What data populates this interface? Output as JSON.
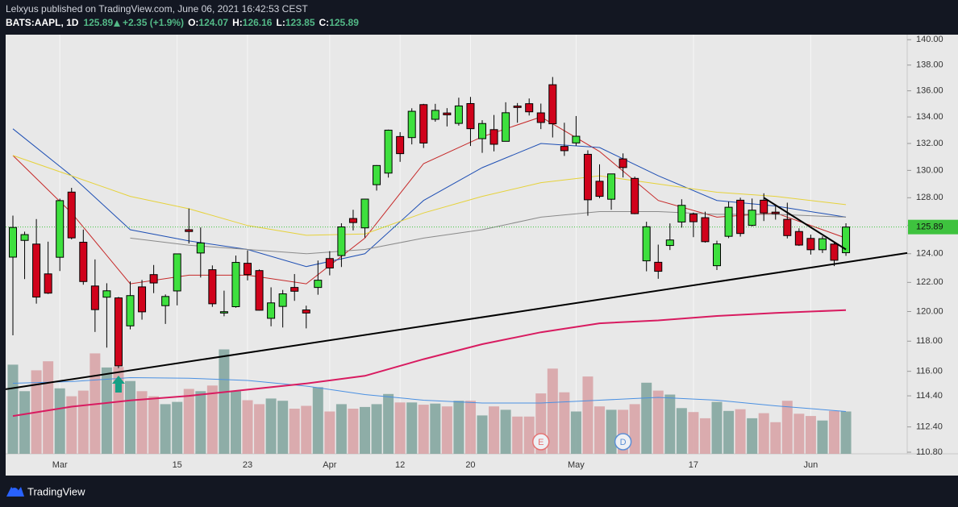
{
  "header": {
    "publisher": "Lelxyus published on TradingView.com, June 06, 2021 16:42:53 CEST",
    "symbol": "BATS:AAPL, 1D",
    "change": "+2.35 (+1.9%)",
    "labels": [
      "O:",
      "H:",
      "L:",
      "C:"
    ]
  },
  "footer": {
    "brand": "TradingView"
  },
  "chart_data": {
    "type": "candlestick",
    "log": true,
    "x": [
      "2021-02-23",
      "2021-02-24",
      "2021-02-25",
      "2021-02-26",
      "2021-03-01",
      "2021-03-02",
      "2021-03-03",
      "2021-03-04",
      "2021-03-05",
      "2021-03-08",
      "2021-03-09",
      "2021-03-10",
      "2021-03-11",
      "2021-03-12",
      "2021-03-15",
      "2021-03-16",
      "2021-03-17",
      "2021-03-18",
      "2021-03-19",
      "2021-03-22",
      "2021-03-23",
      "2021-03-24",
      "2021-03-25",
      "2021-03-26",
      "2021-03-29",
      "2021-03-30",
      "2021-03-31",
      "2021-04-01",
      "2021-04-05",
      "2021-04-06",
      "2021-04-07",
      "2021-04-08",
      "2021-04-09",
      "2021-04-12",
      "2021-04-13",
      "2021-04-14",
      "2021-04-15",
      "2021-04-16",
      "2021-04-19",
      "2021-04-20",
      "2021-04-21",
      "2021-04-22",
      "2021-04-23",
      "2021-04-26",
      "2021-04-27",
      "2021-04-28",
      "2021-04-29",
      "2021-04-30",
      "2021-05-03",
      "2021-05-04",
      "2021-05-05",
      "2021-05-06",
      "2021-05-07",
      "2021-05-10",
      "2021-05-11",
      "2021-05-12",
      "2021-05-13",
      "2021-05-14",
      "2021-05-17",
      "2021-05-18",
      "2021-05-19",
      "2021-05-20",
      "2021-05-21",
      "2021-05-24",
      "2021-05-25",
      "2021-05-26",
      "2021-05-27",
      "2021-05-28",
      "2021-06-01",
      "2021-06-02",
      "2021-06-03",
      "2021-06-04"
    ],
    "open": [
      123.76,
      124.94,
      124.68,
      122.59,
      123.75,
      128.41,
      124.81,
      121.75,
      120.98,
      120.93,
      119.03,
      121.69,
      122.54,
      120.4,
      121.41,
      125.7,
      124.05,
      122.88,
      119.9,
      120.33,
      123.33,
      122.82,
      119.54,
      120.35,
      121.65,
      120.11,
      121.65,
      123.66,
      123.87,
      126.5,
      125.83,
      128.95,
      129.8,
      132.52,
      132.44,
      134.94,
      133.82,
      134.3,
      133.51,
      135.02,
      132.36,
      133.04,
      132.16,
      134.83,
      135.01,
      134.31,
      136.47,
      131.78,
      132.04,
      131.19,
      129.2,
      127.89,
      130.85,
      129.41,
      123.5,
      123.4,
      124.58,
      126.25,
      126.82,
      126.56,
      123.16,
      125.23,
      127.82,
      126.01,
      127.82,
      126.96,
      126.44,
      125.57,
      125.08,
      124.28,
      124.68,
      124.07
    ],
    "high": [
      126.71,
      125.56,
      126.46,
      124.85,
      127.93,
      128.72,
      125.71,
      123.6,
      121.94,
      121.0,
      122.06,
      122.17,
      123.21,
      121.17,
      124.0,
      127.22,
      125.86,
      123.18,
      121.43,
      123.87,
      124.24,
      122.9,
      121.66,
      121.48,
      122.58,
      120.4,
      123.52,
      124.18,
      126.16,
      127.13,
      127.92,
      130.39,
      133.04,
      132.85,
      134.66,
      135.0,
      135.0,
      134.67,
      135.47,
      135.53,
      133.75,
      134.15,
      135.12,
      135.06,
      135.41,
      135.02,
      137.07,
      133.56,
      134.07,
      131.49,
      130.45,
      129.75,
      131.26,
      129.54,
      126.27,
      124.64,
      126.15,
      127.89,
      126.93,
      126.99,
      124.92,
      127.72,
      128.0,
      127.94,
      128.32,
      127.39,
      127.64,
      125.8,
      125.35,
      125.24,
      124.85,
      126.16
    ],
    "low": [
      118.39,
      122.23,
      120.54,
      121.2,
      122.79,
      125.01,
      121.84,
      118.62,
      117.57,
      116.21,
      118.79,
      119.45,
      121.26,
      119.16,
      120.42,
      124.72,
      122.34,
      120.32,
      119.68,
      120.26,
      122.14,
      120.07,
      119.0,
      118.92,
      120.73,
      118.86,
      121.15,
      122.49,
      123.07,
      125.65,
      125.14,
      128.52,
      129.47,
      130.63,
      131.93,
      131.66,
      133.64,
      133.28,
      133.34,
      131.81,
      131.3,
      131.41,
      132.16,
      133.56,
      134.11,
      133.08,
      132.45,
      131.07,
      131.83,
      126.7,
      127.97,
      127.13,
      129.48,
      126.81,
      122.77,
      122.25,
      124.26,
      125.85,
      125.17,
      124.78,
      122.86,
      125.1,
      125.21,
      125.94,
      126.32,
      126.42,
      125.08,
      124.55,
      123.94,
      124.05,
      123.13,
      123.85
    ],
    "close": [
      125.86,
      125.35,
      120.99,
      121.26,
      127.79,
      125.12,
      122.06,
      120.13,
      121.42,
      116.36,
      121.09,
      119.98,
      121.96,
      121.03,
      123.99,
      125.57,
      124.76,
      120.53,
      119.99,
      123.39,
      122.54,
      120.09,
      120.59,
      121.21,
      121.39,
      119.9,
      122.15,
      123.0,
      125.9,
      126.21,
      127.9,
      130.36,
      133.0,
      131.24,
      134.43,
      132.03,
      134.5,
      134.16,
      134.84,
      133.11,
      133.5,
      131.94,
      134.32,
      134.72,
      134.39,
      133.58,
      133.48,
      131.46,
      132.54,
      127.85,
      128.1,
      129.74,
      130.21,
      126.85,
      125.91,
      122.77,
      124.97,
      127.45,
      126.27,
      124.85,
      124.69,
      127.31,
      125.43,
      127.1,
      126.9,
      126.85,
      125.28,
      124.61,
      124.28,
      125.06,
      123.54,
      125.89
    ],
    "volume": [
      158,
      111,
      148,
      164,
      116,
      102,
      112,
      178,
      153,
      154,
      129,
      111,
      102,
      88,
      92,
      115,
      111,
      121,
      185,
      111,
      95,
      88,
      98,
      94,
      80,
      85,
      118,
      75,
      88,
      80,
      83,
      88,
      106,
      91,
      91,
      87,
      89,
      84,
      94,
      94,
      68,
      84,
      78,
      66,
      66,
      107,
      151,
      109,
      75,
      137,
      84,
      78,
      78,
      88,
      126,
      112,
      105,
      81,
      74,
      63,
      92,
      76,
      79,
      63,
      72,
      56,
      94,
      71,
      67,
      59,
      76,
      75
    ],
    "up_color": "#3ee03e",
    "down_color": "#d0021b",
    "volume_up_color": "#7fa39c",
    "volume_down_color": "#d8a1a4",
    "ylim": [
      110.7,
      140.4
    ],
    "yticks": [
      {
        "value": 140,
        "label": "140.00"
      },
      {
        "value": 138,
        "label": "138.00"
      },
      {
        "value": 136,
        "label": "136.00"
      },
      {
        "value": 134,
        "label": "134.00"
      },
      {
        "value": 132,
        "label": "132.00"
      },
      {
        "value": 130,
        "label": "130.00"
      },
      {
        "value": 128,
        "label": "128.00"
      },
      {
        "value": 126,
        "label": "126.00"
      },
      {
        "value": 124,
        "label": "124.00"
      },
      {
        "value": 122,
        "label": "122.00"
      },
      {
        "value": 120,
        "label": "120.00"
      },
      {
        "value": 118,
        "label": "118.00"
      },
      {
        "value": 116,
        "label": "116.00"
      },
      {
        "value": 114.4,
        "label": "114.40"
      },
      {
        "value": 112.4,
        "label": "112.40"
      },
      {
        "value": 110.8,
        "label": "110.80"
      }
    ],
    "xticks": [
      {
        "value": "2021-03-01",
        "label": "Mar"
      },
      {
        "value": "2021-03-15",
        "label": "15"
      },
      {
        "value": "2021-03-23",
        "label": "23"
      },
      {
        "value": "2021-04-01",
        "label": "Apr"
      },
      {
        "value": "2021-04-12",
        "label": "12"
      },
      {
        "value": "2021-04-20",
        "label": "20"
      },
      {
        "value": "2021-05-03",
        "label": "May"
      },
      {
        "value": "2021-05-17",
        "label": "17"
      },
      {
        "value": "2021-06-01",
        "label": "Jun"
      }
    ],
    "moving_averages": {
      "x": [
        "2021-02-23",
        "2021-03-02",
        "2021-03-09",
        "2021-03-16",
        "2021-03-23",
        "2021-03-30",
        "2021-04-07",
        "2021-04-14",
        "2021-04-21",
        "2021-04-28",
        "2021-05-05",
        "2021-05-12",
        "2021-05-19",
        "2021-05-26",
        "2021-06-04"
      ],
      "series": [
        {
          "color": "#c62828",
          "values": [
            131.1,
            126.9,
            121.9,
            122.5,
            122.5,
            121.9,
            125.1,
            130.5,
            132.5,
            134.0,
            131.4,
            127.8,
            126.6,
            126.9,
            125.1
          ]
        },
        {
          "color": "#1e4fb4",
          "values": [
            133.1,
            129.6,
            125.7,
            124.9,
            124.3,
            123.1,
            124.0,
            127.8,
            130.2,
            132.0,
            131.7,
            129.6,
            127.8,
            127.4,
            126.6
          ]
        },
        {
          "color": "#e6d23a",
          "values": [
            131.1,
            129.6,
            128.1,
            127.2,
            126.0,
            125.3,
            125.4,
            126.9,
            128.1,
            129.1,
            129.6,
            129.0,
            128.4,
            128.1,
            127.5
          ]
        },
        {
          "color": "#8a8a8a",
          "values": [
            null,
            null,
            125.1,
            124.6,
            124.3,
            124.0,
            124.3,
            125.1,
            125.7,
            126.6,
            127.0,
            127.0,
            126.8,
            126.8,
            126.6
          ]
        },
        {
          "color": "#d81b60",
          "values": [
            113.1,
            113.7,
            114.1,
            114.4,
            114.8,
            115.2,
            115.7,
            116.8,
            117.8,
            118.6,
            119.2,
            119.4,
            119.7,
            119.9,
            120.1
          ]
        }
      ],
      "volume_ma": {
        "color": "#4a90e2",
        "values": [
          125,
          128,
          135,
          134,
          130,
          120,
          105,
          95,
          90,
          90,
          95,
          100,
          95,
          85,
          75
        ]
      }
    },
    "trendlines": [
      {
        "x": [
          "2021-02-23",
          "2021-06-04"
        ],
        "y": [
          114.9,
          123.4
        ],
        "extend": true
      },
      {
        "x": [
          "2021-05-25",
          "2021-06-04"
        ],
        "y": [
          128.0,
          124.3
        ],
        "extend": false
      }
    ],
    "events": [
      {
        "x": "2021-04-28",
        "label": "E",
        "color": "#e57373"
      },
      {
        "x": "2021-05-07",
        "label": "D",
        "color": "#5b8fd6"
      }
    ],
    "signals": [
      {
        "x": "2021-03-08",
        "color": "#16a085"
      }
    ],
    "last_price_color": "#3ec23e"
  }
}
